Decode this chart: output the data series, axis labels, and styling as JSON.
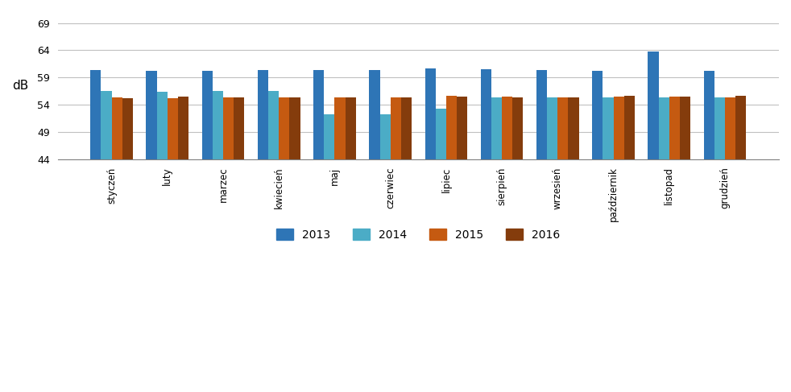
{
  "months": [
    "styczeń",
    "luty",
    "marzec",
    "kwiecień",
    "maj",
    "czerwiec",
    "lipiec",
    "sierpień",
    "wrzesień",
    "październik",
    "listopad",
    "grudzień"
  ],
  "series": {
    "2013": [
      60.3,
      60.2,
      60.2,
      60.4,
      60.3,
      60.3,
      60.6,
      60.5,
      60.3,
      60.2,
      63.8,
      60.2
    ],
    "2014": [
      56.5,
      56.4,
      56.5,
      56.5,
      52.2,
      52.2,
      53.3,
      55.3,
      55.4,
      55.3,
      55.3,
      55.4
    ],
    "2015": [
      55.3,
      55.2,
      55.4,
      55.4,
      55.4,
      55.4,
      55.6,
      55.5,
      55.3,
      55.5,
      55.5,
      55.4
    ],
    "2016": [
      55.2,
      55.5,
      55.4,
      55.3,
      55.3,
      55.4,
      55.5,
      55.4,
      55.3,
      55.6,
      55.5,
      55.6
    ]
  },
  "colors": {
    "2013": "#2E75B6",
    "2014": "#4BACC6",
    "2015": "#C55A11",
    "2016": "#843C0C"
  },
  "ylabel": "dB",
  "ymin": 44,
  "ylim": [
    44,
    71
  ],
  "yticks": [
    44,
    49,
    54,
    59,
    64,
    69
  ],
  "bar_width": 0.19,
  "legend_labels": [
    "2013",
    "2014",
    "2015",
    "2016"
  ],
  "background_color": "#FFFFFF",
  "grid_color": "#C0C0C0",
  "axis_color": "#808080"
}
